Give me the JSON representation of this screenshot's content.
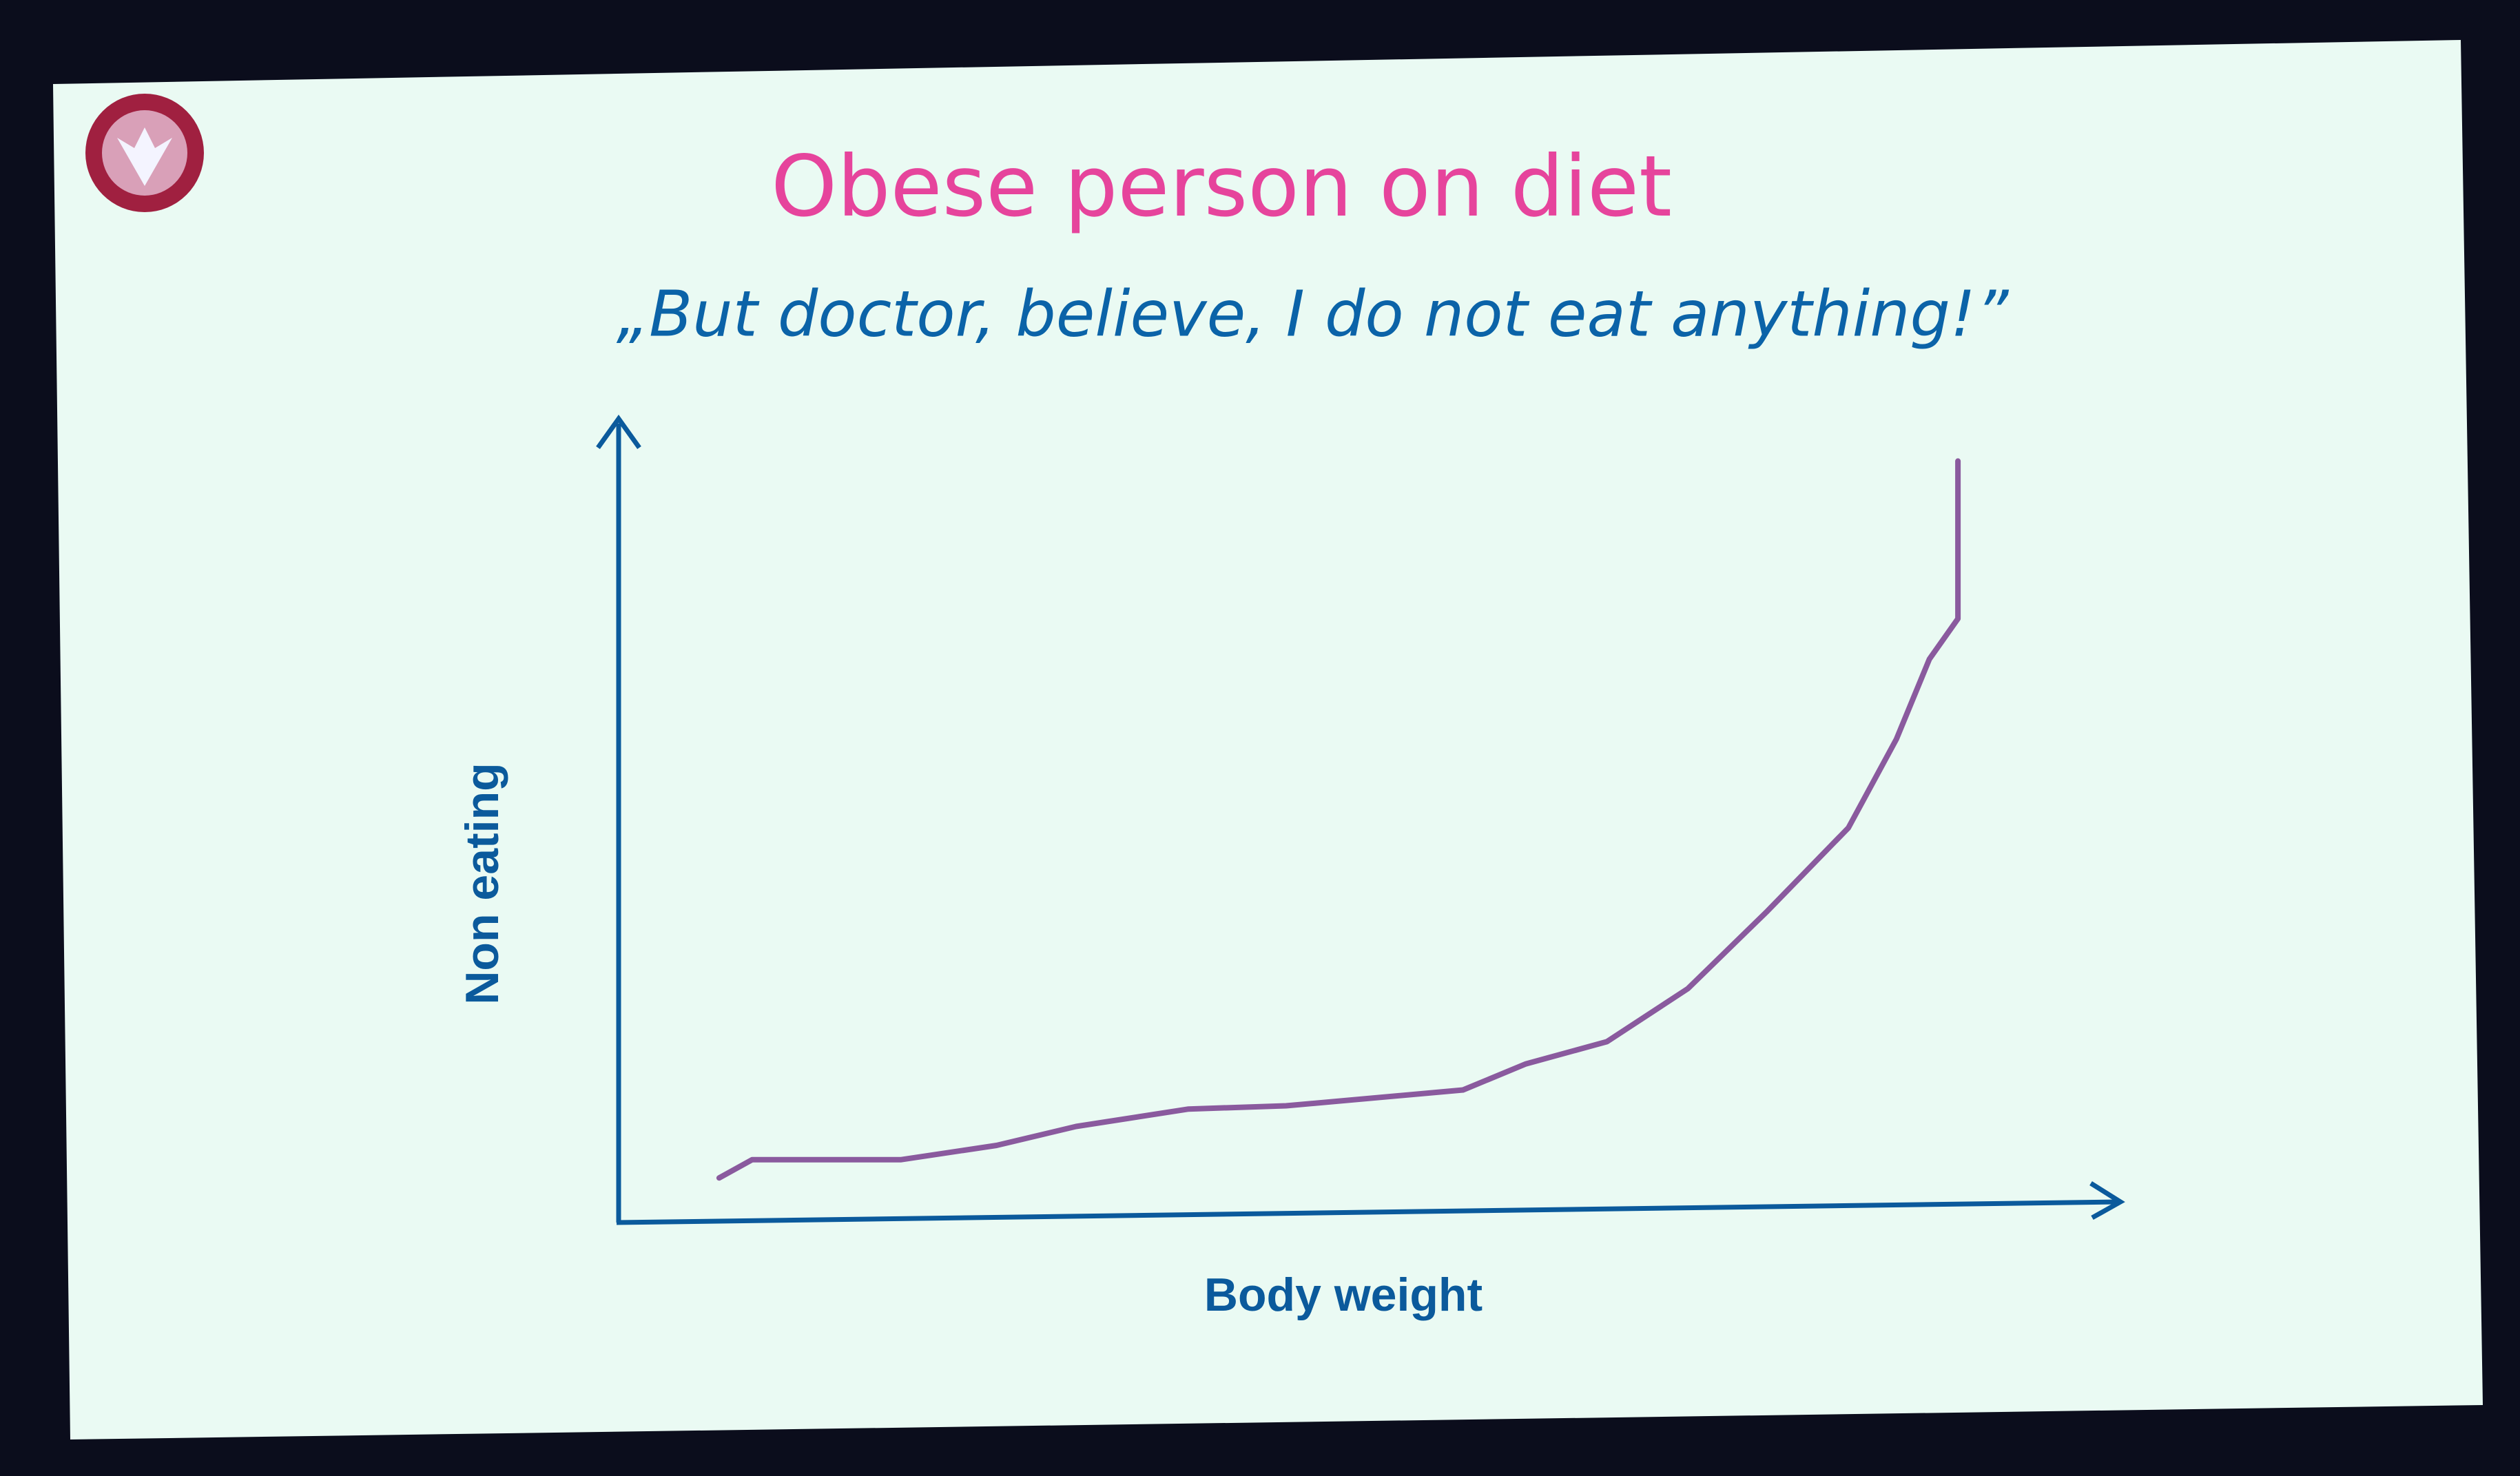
{
  "chart_data": {
    "type": "line",
    "title": "Obese person on diet",
    "subtitle": "„But doctor, believe, I do not eat anything!”",
    "x_label": "Body weight",
    "y_label": "Non eating",
    "x": [
      6.7,
      8.9,
      18.8,
      25.2,
      30.5,
      38.0,
      44.5,
      56.3,
      60.5,
      65.9,
      71.3,
      76.6,
      82.0,
      85.2,
      87.4,
      89.3,
      89.3
    ],
    "series": [
      {
        "name": "Non eating",
        "color": "#8a5a9e",
        "values": [
          5.2,
          7.5,
          7.5,
          9.3,
          11.7,
          13.9,
          14.3,
          16.3,
          19.6,
          22.4,
          29.1,
          38.9,
          49.4,
          60.6,
          70.7,
          75.8,
          95.7
        ]
      }
    ],
    "xlim": [
      0,
      100
    ],
    "ylim": [
      0,
      100
    ],
    "grid": false
  }
}
